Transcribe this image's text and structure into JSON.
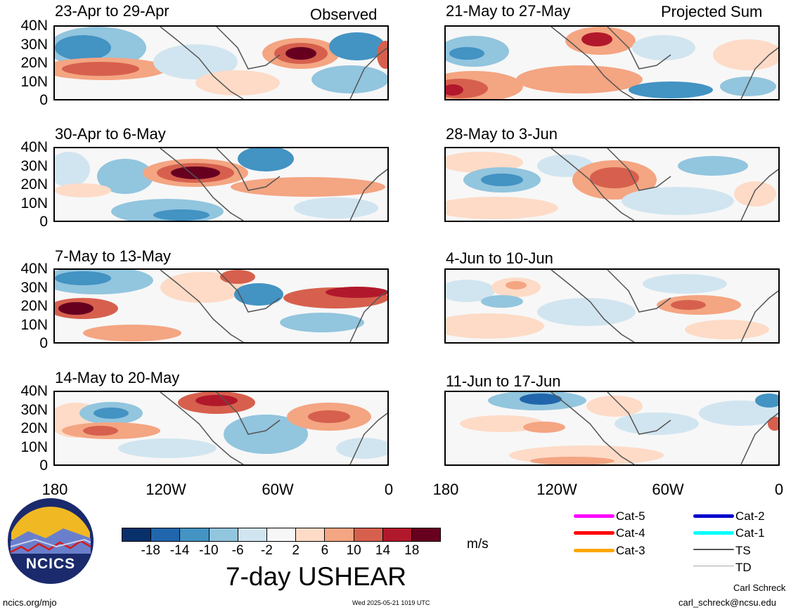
{
  "header": {
    "observed_label": "Observed",
    "projected_label": "Projected Sum"
  },
  "panels": {
    "left": [
      {
        "title": "23-Apr to 29-Apr"
      },
      {
        "title": "30-Apr to 6-May"
      },
      {
        "title": "7-May to 13-May"
      },
      {
        "title": "14-May to 20-May"
      }
    ],
    "right": [
      {
        "title": "21-May to 27-May"
      },
      {
        "title": "28-May to 3-Jun"
      },
      {
        "title": "4-Jun to 10-Jun"
      },
      {
        "title": "11-Jun to 17-Jun"
      }
    ]
  },
  "axes": {
    "y_ticks": [
      "40N",
      "30N",
      "20N",
      "10N",
      "0"
    ],
    "x_ticks": [
      "180",
      "120W",
      "60W",
      "0"
    ]
  },
  "colorbar": {
    "labels": [
      "-18",
      "-14",
      "-10",
      "-6",
      "-2",
      "2",
      "6",
      "10",
      "14",
      "18"
    ],
    "colors": [
      "#08306b",
      "#2166ac",
      "#4393c3",
      "#92c5de",
      "#d1e5f0",
      "#f7f7f7",
      "#fddbc7",
      "#f4a582",
      "#d6604d",
      "#b2182b",
      "#67001f"
    ],
    "unit": "m/s",
    "title": "7-day USHEAR"
  },
  "legend": {
    "items": [
      {
        "label": "Cat-5",
        "color": "#ff00ff"
      },
      {
        "label": "Cat-4",
        "color": "#ff0000"
      },
      {
        "label": "Cat-3",
        "color": "#ffa500"
      },
      {
        "label": "Cat-2",
        "color": "#0000cd"
      },
      {
        "label": "Cat-1",
        "color": "#00ffff"
      },
      {
        "label": "TS",
        "color": "#555555"
      },
      {
        "label": "TD",
        "color": "#aaaaaa"
      }
    ]
  },
  "logo": {
    "text": "NCICS"
  },
  "footer": {
    "url": "ncics.org/mjo",
    "timestamp": "Wed 2025-05-21 1019 UTC",
    "author": "Carl Schreck",
    "email": "carl_schreck@ncsu.edu"
  }
}
